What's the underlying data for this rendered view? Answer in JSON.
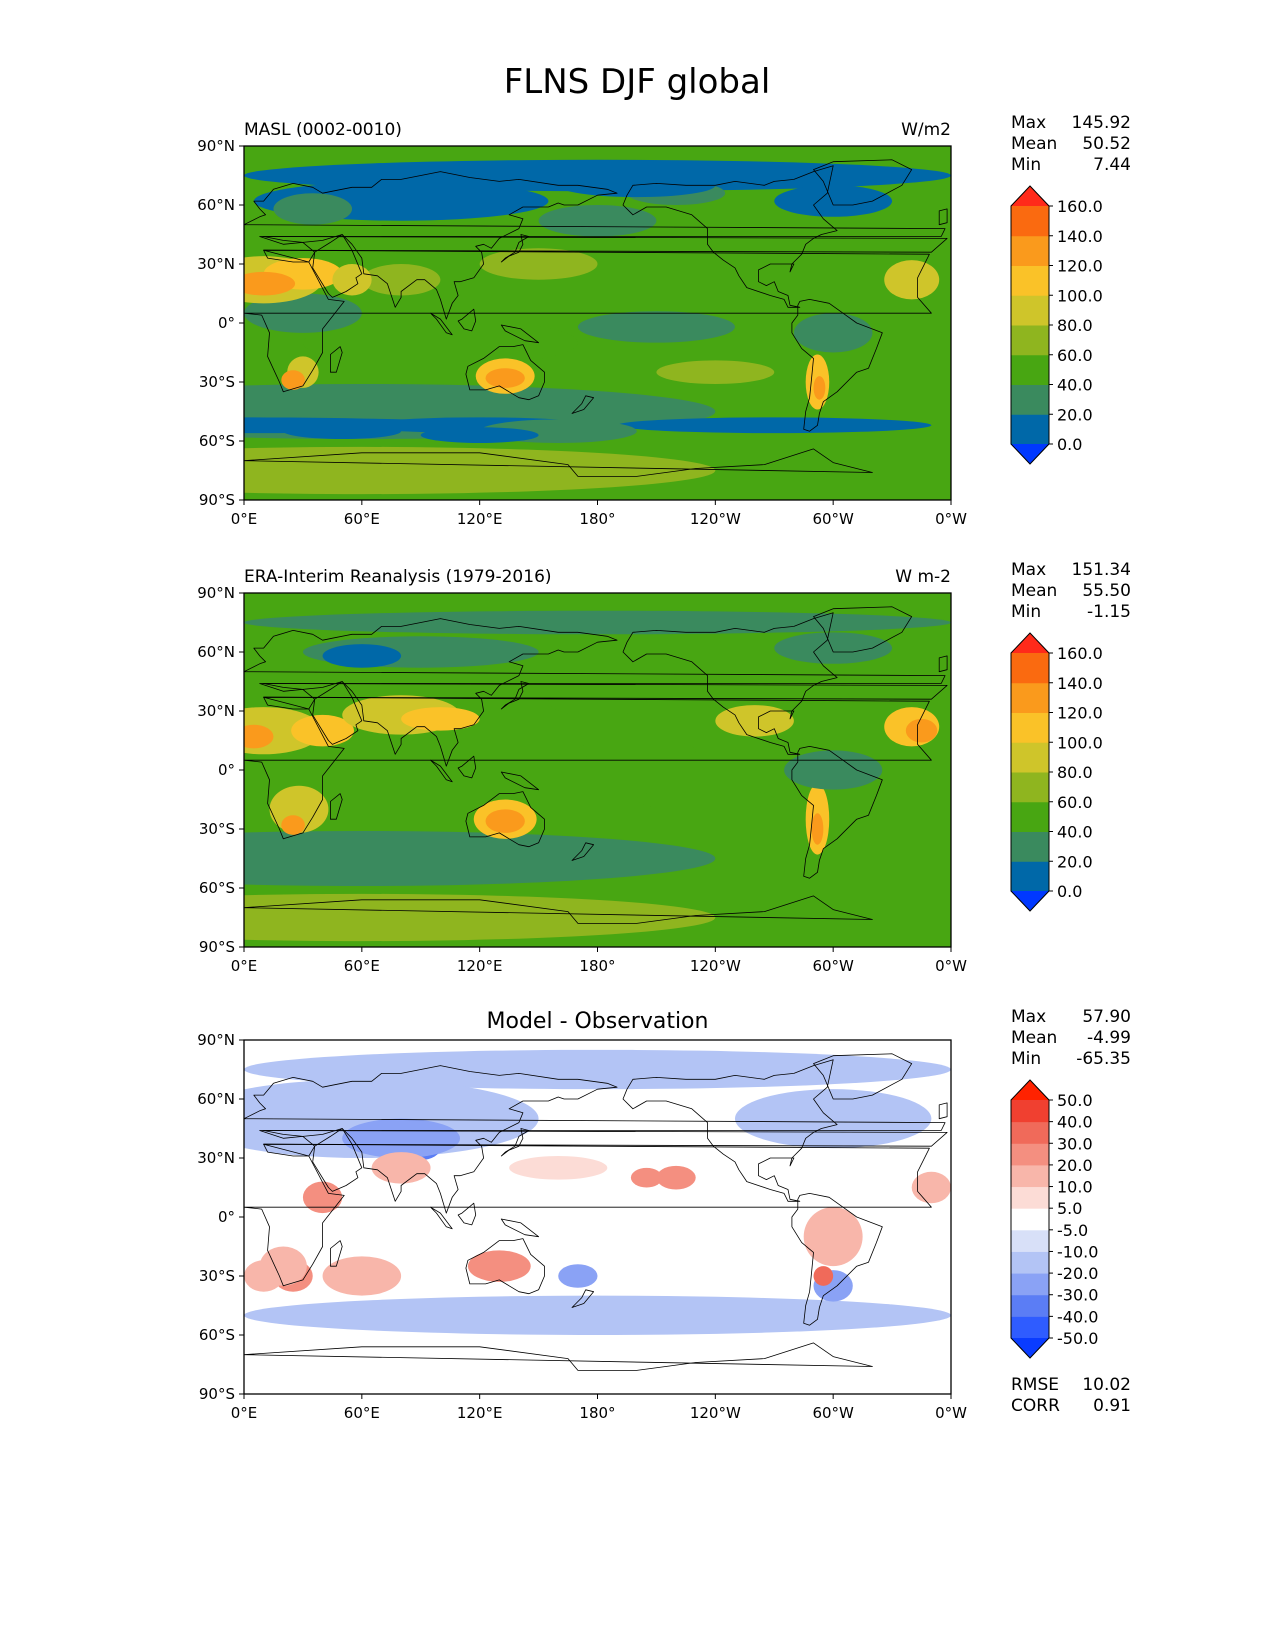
{
  "figure": {
    "title": "FLNS DJF global"
  },
  "chart_data": [
    {
      "type": "heatmap",
      "title_left": "MASL (0002-0010)",
      "title_right": "W/m2",
      "stats": {
        "max_label": "Max",
        "max": "145.92",
        "mean_label": "Mean",
        "mean": "50.52",
        "min_label": "Min",
        "min": "7.44"
      },
      "colorbar": {
        "levels": [
          "0.0",
          "20.0",
          "40.0",
          "60.0",
          "80.0",
          "100.0",
          "120.0",
          "140.0",
          "160.0"
        ],
        "colors": [
          "#0038ff",
          "#0068a8",
          "#3a8a5e",
          "#48a612",
          "#8fb51f",
          "#cfc52a",
          "#fac228",
          "#fa9a1c",
          "#fa6a10",
          "#ff2a1a"
        ]
      },
      "x_ticks": [
        "0°E",
        "60°E",
        "120°E",
        "180°",
        "120°W",
        "60°W",
        "0°W"
      ],
      "y_ticks": [
        "90°N",
        "60°N",
        "30°N",
        "0°",
        "30°S",
        "60°S",
        "90°S"
      ],
      "xlim": [
        0,
        360
      ],
      "ylim": [
        -90,
        90
      ]
    },
    {
      "type": "heatmap",
      "title_left": "ERA-Interim Reanalysis (1979-2016)",
      "title_right": "W m-2",
      "stats": {
        "max_label": "Max",
        "max": "151.34",
        "mean_label": "Mean",
        "mean": "55.50",
        "min_label": "Min",
        "min": "-1.15"
      },
      "colorbar": {
        "levels": [
          "0.0",
          "20.0",
          "40.0",
          "60.0",
          "80.0",
          "100.0",
          "120.0",
          "140.0",
          "160.0"
        ],
        "colors": [
          "#0038ff",
          "#0068a8",
          "#3a8a5e",
          "#48a612",
          "#8fb51f",
          "#cfc52a",
          "#fac228",
          "#fa9a1c",
          "#fa6a10",
          "#ff2a1a"
        ]
      },
      "x_ticks": [
        "0°E",
        "60°E",
        "120°E",
        "180°",
        "120°W",
        "60°W",
        "0°W"
      ],
      "y_ticks": [
        "90°N",
        "60°N",
        "30°N",
        "0°",
        "30°S",
        "60°S",
        "90°S"
      ],
      "xlim": [
        0,
        360
      ],
      "ylim": [
        -90,
        90
      ]
    },
    {
      "type": "heatmap",
      "title_center": "Model - Observation",
      "stats": {
        "max_label": "Max",
        "max": "57.90",
        "mean_label": "Mean",
        "mean": "-4.99",
        "min_label": "Min",
        "min": "-65.35"
      },
      "extra_stats": {
        "rmse_label": "RMSE",
        "rmse": "10.02",
        "corr_label": "CORR",
        "corr": "0.91"
      },
      "colorbar": {
        "levels": [
          "-50.0",
          "-40.0",
          "-30.0",
          "-20.0",
          "-10.0",
          "-5.0",
          "5.0",
          "10.0",
          "20.0",
          "30.0",
          "40.0",
          "50.0"
        ],
        "colors": [
          "#0a3cff",
          "#2f5cff",
          "#5b7df5",
          "#8aa2f5",
          "#b3c4f5",
          "#d8e0f8",
          "#ffffff",
          "#fcdcd6",
          "#f8b6aa",
          "#f48f80",
          "#f06a5a",
          "#f04030",
          "#ff2200"
        ]
      },
      "x_ticks": [
        "0°E",
        "60°E",
        "120°E",
        "180°",
        "120°W",
        "60°W",
        "0°W"
      ],
      "y_ticks": [
        "90°N",
        "60°N",
        "30°N",
        "0°",
        "30°S",
        "60°S",
        "90°S"
      ],
      "xlim": [
        0,
        360
      ],
      "ylim": [
        -90,
        90
      ]
    }
  ]
}
